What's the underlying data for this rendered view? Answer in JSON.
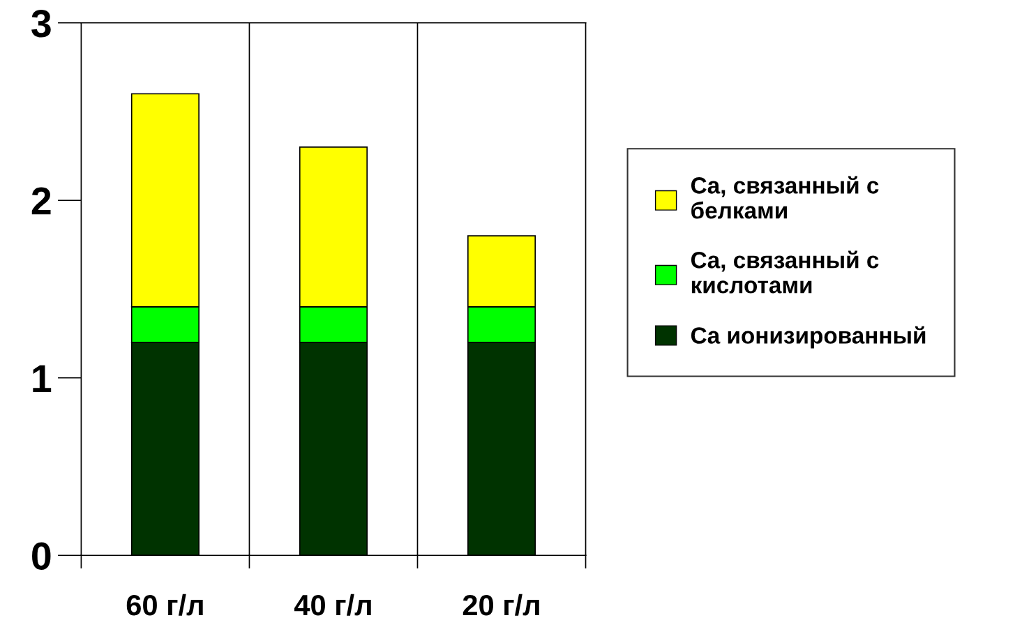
{
  "chart_data": {
    "type": "bar",
    "stacked": true,
    "categories": [
      "60 г/л",
      "40 г/л",
      "20 г/л"
    ],
    "series": [
      {
        "name": "Ca ионизированный",
        "color": "#003300",
        "values": [
          1.2,
          1.2,
          1.2
        ]
      },
      {
        "name": "Ca, связанный с\nкислотами",
        "color": "#00ff00",
        "values": [
          0.2,
          0.2,
          0.2
        ]
      },
      {
        "name": "Ca, связанный с\nбелками",
        "color": "#ffff00",
        "values": [
          1.2,
          0.9,
          0.4
        ]
      }
    ],
    "ylim": [
      0,
      3
    ],
    "yticks": [
      0,
      1,
      2,
      3
    ],
    "grid": "x",
    "legend": "right"
  }
}
